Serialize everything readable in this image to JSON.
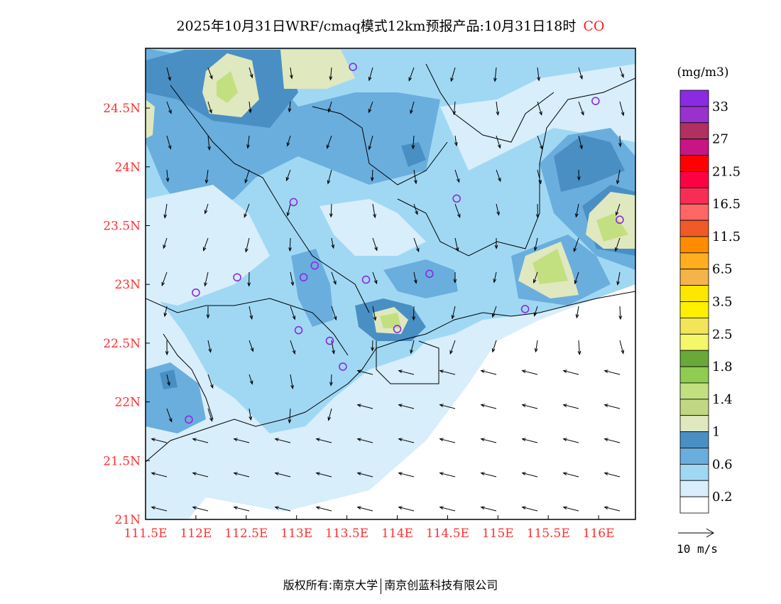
{
  "title": {
    "main": "2025年10月31日WRF/cmaq模式12km预报产品:10月31日18时",
    "species": "CO"
  },
  "map": {
    "lon_range": [
      111.5,
      116.5
    ],
    "lat_range": [
      21,
      25
    ],
    "lon_ticks": [
      "111.5E",
      "112E",
      "112.5E",
      "113E",
      "113.5E",
      "114E",
      "114.5E",
      "115E",
      "115.5E",
      "116E"
    ],
    "lon_tick_values": [
      111.5,
      112,
      112.5,
      113,
      113.5,
      114,
      114.5,
      115,
      115.5,
      116
    ],
    "lat_ticks": [
      "21N",
      "21.5N",
      "22N",
      "22.5N",
      "23N",
      "23.5N",
      "24N",
      "24.5N"
    ],
    "lat_tick_values": [
      21,
      21.5,
      22,
      22.5,
      23,
      23.5,
      24,
      24.5
    ],
    "tick_color": "#ff3030",
    "station_color": "#8a2be2",
    "stations": [
      [
        113.56,
        24.85
      ],
      [
        115.97,
        24.56
      ],
      [
        112.97,
        23.7
      ],
      [
        114.59,
        23.73
      ],
      [
        116.21,
        23.55
      ],
      [
        112.41,
        23.06
      ],
      [
        112.0,
        22.93
      ],
      [
        113.18,
        23.16
      ],
      [
        113.07,
        23.06
      ],
      [
        113.69,
        23.04
      ],
      [
        114.32,
        23.09
      ],
      [
        115.27,
        22.79
      ],
      [
        113.02,
        22.61
      ],
      [
        114.0,
        22.62
      ],
      [
        113.33,
        22.52
      ],
      [
        113.46,
        22.3
      ],
      [
        111.93,
        21.85
      ]
    ]
  },
  "legend": {
    "unit": "(mg/m3)",
    "colors": [
      "#8a2be2",
      "#9932cc",
      "#b03060",
      "#c71585",
      "#ff0000",
      "#ff0044",
      "#f82d55",
      "#ff6666",
      "#f05a28",
      "#ff8c00",
      "#ffae1f",
      "#f5b44a",
      "#ffe600",
      "#fff000",
      "#f2e55a",
      "#f4f76a",
      "#6aa83a",
      "#90cc50",
      "#c2e080",
      "#c2d880",
      "#e0e8c0",
      "#4a8fc4",
      "#6aaede",
      "#a0d8f4",
      "#d8eefa",
      "#ffffff"
    ],
    "labels": [
      "33",
      "27",
      "21.5",
      "16.5",
      "11.5",
      "6.5",
      "3.5",
      "2.5",
      "1.8",
      "1.4",
      "1",
      "0.6",
      "0.2"
    ],
    "wind_ref": "10 m/s"
  },
  "footer": {
    "left": "版权所有:南京大学",
    "right": "南京创蓝科技有限公司"
  }
}
